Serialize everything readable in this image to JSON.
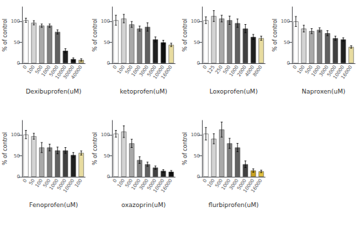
{
  "chart_data": [
    {
      "type": "bar",
      "xlabel": "Dexibuprofen(uM)",
      "ylabel": "% of control",
      "categories": [
        "0",
        "100",
        "500",
        "1000",
        "5000",
        "10000",
        "30000",
        "40000"
      ],
      "values": [
        103,
        97,
        90,
        90,
        75,
        30,
        10,
        8
      ],
      "errors": [
        5,
        5,
        4,
        4,
        5,
        5,
        3,
        3
      ],
      "colors": [
        "#ffffff",
        "#d3d3d3",
        "#a9a9a9",
        "#808080",
        "#606060",
        "#202020",
        "#101010",
        "#c8b87a"
      ],
      "ylim": [
        0,
        135
      ],
      "yticks": [
        0,
        50,
        100
      ],
      "grid": false
    },
    {
      "type": "bar",
      "xlabel": "ketoprofen(uM)",
      "ylabel": "% of control",
      "categories": [
        "0",
        "100",
        "500",
        "1000",
        "3000",
        "5000",
        "10000",
        "16000"
      ],
      "values": [
        103,
        107,
        93,
        83,
        87,
        57,
        50,
        44
      ],
      "errors": [
        12,
        10,
        7,
        6,
        10,
        6,
        5,
        4
      ],
      "colors": [
        "#ffffff",
        "#d3d3d3",
        "#a9a9a9",
        "#808080",
        "#606060",
        "#202020",
        "#101010",
        "#e8dca0"
      ],
      "ylim": [
        0,
        135
      ],
      "yticks": [
        0,
        50,
        100
      ],
      "grid": false
    },
    {
      "type": "bar",
      "xlabel": "Loxoprofen(uM)",
      "ylabel": "% of control",
      "categories": [
        "0",
        "125",
        "250",
        "500",
        "1000",
        "2000",
        "4000",
        "8000"
      ],
      "values": [
        103,
        113,
        107,
        103,
        96,
        83,
        63,
        60
      ],
      "errors": [
        8,
        13,
        8,
        10,
        10,
        10,
        6,
        5
      ],
      "colors": [
        "#ffffff",
        "#d3d3d3",
        "#a9a9a9",
        "#808080",
        "#606060",
        "#404040",
        "#202020",
        "#e8dca0"
      ],
      "ylim": [
        0,
        135
      ],
      "yticks": [
        0,
        50,
        100
      ],
      "grid": false
    },
    {
      "type": "bar",
      "xlabel": "Naproxen(uM)",
      "ylabel": "% of control",
      "categories": [
        "0",
        "100",
        "500",
        "1000",
        "3000",
        "5000",
        "10000",
        "16000"
      ],
      "values": [
        100,
        83,
        77,
        80,
        72,
        60,
        57,
        39
      ],
      "errors": [
        12,
        8,
        6,
        5,
        6,
        5,
        4,
        3
      ],
      "colors": [
        "#ffffff",
        "#d3d3d3",
        "#a9a9a9",
        "#808080",
        "#606060",
        "#404040",
        "#202020",
        "#e8dca0"
      ],
      "ylim": [
        0,
        135
      ],
      "yticks": [
        0,
        50,
        100
      ],
      "grid": false
    },
    {
      "type": "bar",
      "xlabel": "Fenoprofen(uM)",
      "ylabel": "% of control",
      "categories": [
        "0",
        "50",
        "100",
        "500",
        "1000",
        "5000",
        "10000",
        "100"
      ],
      "values": [
        101,
        97,
        70,
        70,
        63,
        63,
        52,
        57
      ],
      "errors": [
        10,
        7,
        12,
        8,
        8,
        7,
        6,
        5
      ],
      "colors": [
        "#ffffff",
        "#d3d3d3",
        "#a9a9a9",
        "#808080",
        "#606060",
        "#404040",
        "#202020",
        "#e8dca0"
      ],
      "ylim": [
        0,
        135
      ],
      "yticks": [
        0,
        50,
        100
      ],
      "grid": false
    },
    {
      "type": "bar",
      "xlabel": "oxazoprin(uM)",
      "ylabel": "% of control",
      "categories": [
        "0",
        "100",
        "500",
        "1000",
        "3000",
        "5000",
        "10000",
        "16000"
      ],
      "values": [
        103,
        108,
        80,
        40,
        30,
        22,
        14,
        12
      ],
      "errors": [
        8,
        14,
        10,
        8,
        5,
        4,
        3,
        3
      ],
      "colors": [
        "#ffffff",
        "#d3d3d3",
        "#a9a9a9",
        "#808080",
        "#606060",
        "#404040",
        "#202020",
        "#101010"
      ],
      "ylim": [
        0,
        135
      ],
      "yticks": [
        0,
        50,
        100
      ],
      "grid": false
    },
    {
      "type": "bar",
      "xlabel": "flurbiprofen(uM)",
      "ylabel": "% of control",
      "categories": [
        "0",
        "100",
        "500",
        "1000",
        "3000",
        "5000",
        "10000",
        "16000"
      ],
      "values": [
        103,
        91,
        113,
        80,
        70,
        30,
        15,
        13
      ],
      "errors": [
        15,
        12,
        18,
        12,
        10,
        8,
        4,
        3
      ],
      "colors": [
        "#ffffff",
        "#d3d3d3",
        "#a9a9a9",
        "#808080",
        "#606060",
        "#404040",
        "#c8a020",
        "#e0c040"
      ],
      "ylim": [
        0,
        135
      ],
      "yticks": [
        0,
        50,
        100
      ],
      "grid": false
    }
  ]
}
